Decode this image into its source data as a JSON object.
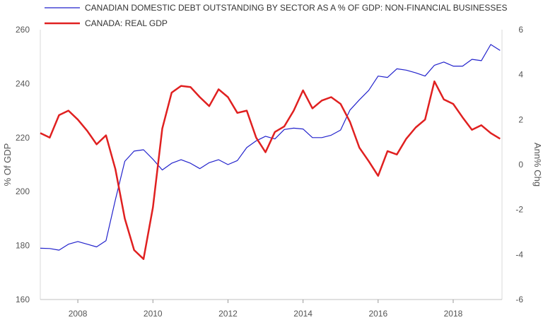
{
  "chart_data": {
    "type": "line",
    "legend_position": "top-left",
    "grid": false,
    "x_ticks": [
      "2008",
      "2010",
      "2012",
      "2014",
      "2016",
      "2018"
    ],
    "xlim": [
      2007.0,
      2019.3
    ],
    "y_left": {
      "label": "% Of GDP",
      "ylim": [
        160,
        260
      ],
      "ticks": [
        "260",
        "240",
        "220",
        "200",
        "180",
        "160"
      ]
    },
    "y_right": {
      "label": "Ann% Chg",
      "ylim": [
        -6,
        6
      ],
      "ticks": [
        "6",
        "4",
        "2",
        "0",
        "-2",
        "-4",
        "-6"
      ]
    },
    "series": [
      {
        "name": "CANADIAN DOMESTIC DEBT OUTSTANDING BY SECTOR AS A % OF GDP: NON-FINANCIAL BUSINESSES",
        "axis": "left",
        "color": "#2222cc",
        "x": [
          2007.0,
          2007.25,
          2007.5,
          2007.75,
          2008.0,
          2008.25,
          2008.5,
          2008.75,
          2009.0,
          2009.25,
          2009.5,
          2009.75,
          2010.0,
          2010.25,
          2010.5,
          2010.75,
          2011.0,
          2011.25,
          2011.5,
          2011.75,
          2012.0,
          2012.25,
          2012.5,
          2012.75,
          2013.0,
          2013.25,
          2013.5,
          2013.75,
          2014.0,
          2014.25,
          2014.5,
          2014.75,
          2015.0,
          2015.25,
          2015.5,
          2015.75,
          2016.0,
          2016.25,
          2016.5,
          2016.75,
          2017.0,
          2017.25,
          2017.5,
          2017.75,
          2018.0,
          2018.25,
          2018.5,
          2018.75,
          2019.0,
          2019.25
        ],
        "values": [
          179,
          178.9,
          178.3,
          180.5,
          181.5,
          180.5,
          179.5,
          181.8,
          197,
          211.2,
          215,
          215.5,
          212,
          208,
          210.5,
          211.8,
          210.5,
          208.5,
          210.7,
          211.8,
          210,
          211.5,
          216.3,
          218.8,
          220.5,
          219.5,
          223,
          223.5,
          223.2,
          220,
          220,
          220.9,
          222.8,
          230.2,
          234,
          237.5,
          242.8,
          242.3,
          245.5,
          245,
          244,
          242.8,
          246.8,
          248,
          246.5,
          246.5,
          249,
          248.5,
          254.5,
          252.3
        ]
      },
      {
        "name": "CANADA: REAL GDP",
        "axis": "right",
        "color": "#e02020",
        "x": [
          2007.0,
          2007.25,
          2007.5,
          2007.75,
          2008.0,
          2008.25,
          2008.5,
          2008.75,
          2009.0,
          2009.25,
          2009.5,
          2009.75,
          2010.0,
          2010.25,
          2010.5,
          2010.75,
          2011.0,
          2011.25,
          2011.5,
          2011.75,
          2012.0,
          2012.25,
          2012.5,
          2012.75,
          2013.0,
          2013.25,
          2013.5,
          2013.75,
          2014.0,
          2014.25,
          2014.5,
          2014.75,
          2015.0,
          2015.25,
          2015.5,
          2015.75,
          2016.0,
          2016.25,
          2016.5,
          2016.75,
          2017.0,
          2017.25,
          2017.5,
          2017.75,
          2018.0,
          2018.25,
          2018.5,
          2018.75,
          2019.0,
          2019.25
        ],
        "values": [
          1.4,
          1.2,
          2.2,
          2.4,
          2.0,
          1.5,
          0.9,
          1.3,
          -0.2,
          -2.4,
          -3.8,
          -4.2,
          -1.9,
          1.6,
          3.2,
          3.5,
          3.45,
          3.0,
          2.6,
          3.35,
          3.0,
          2.3,
          2.4,
          1.2,
          0.55,
          1.45,
          1.7,
          2.4,
          3.3,
          2.5,
          2.85,
          3.0,
          2.7,
          1.9,
          0.75,
          0.15,
          -0.5,
          0.6,
          0.45,
          1.15,
          1.65,
          2.0,
          3.7,
          2.9,
          2.7,
          2.1,
          1.55,
          1.75,
          1.4,
          1.15
        ]
      }
    ]
  }
}
